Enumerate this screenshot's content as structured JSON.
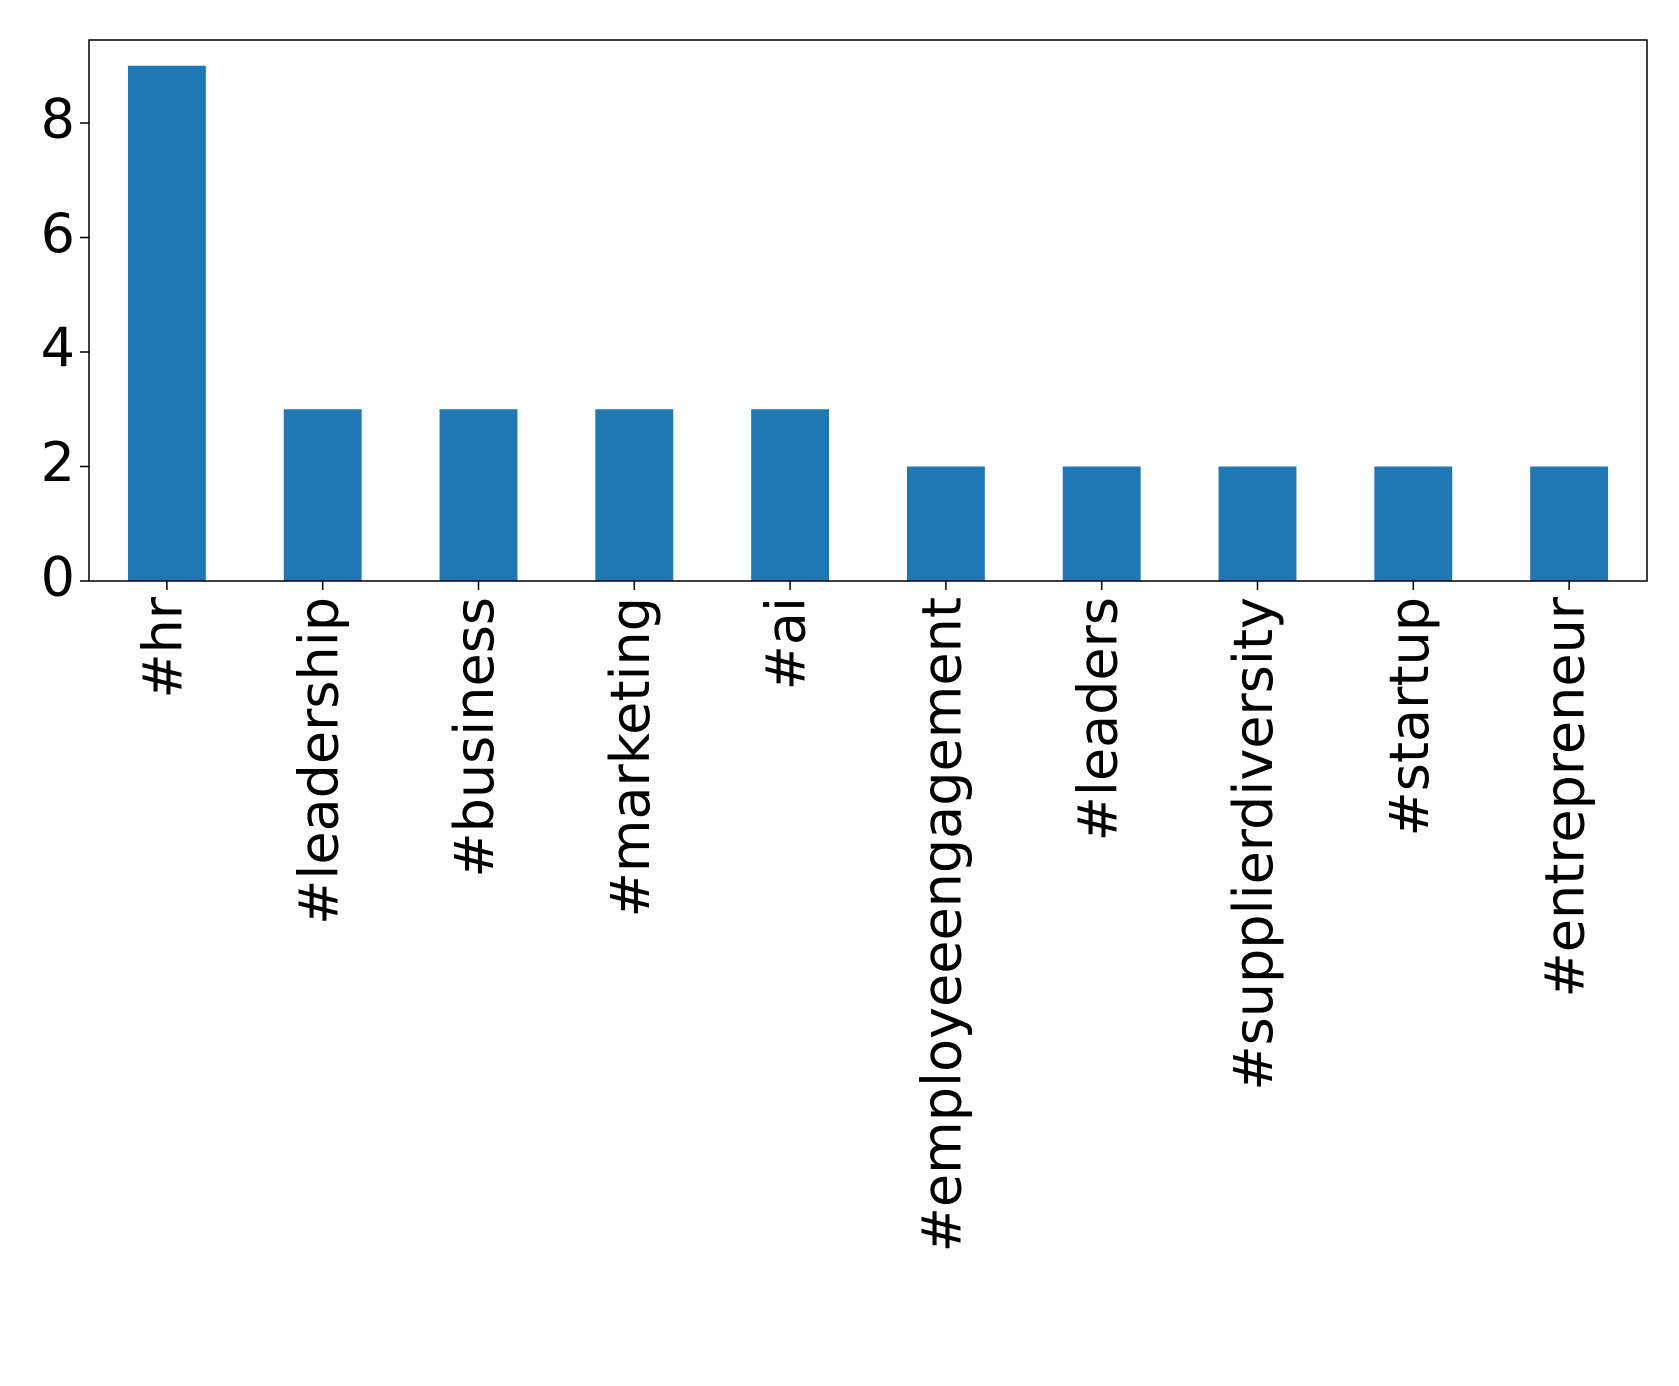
{
  "chart_data": {
    "type": "bar",
    "categories": [
      "#hr",
      "#leadership",
      "#business",
      "#marketing",
      "#ai",
      "#employeeengagement",
      "#leaders",
      "#supplierdiversity",
      "#startup",
      "#entrepreneur"
    ],
    "values": [
      9,
      3,
      3,
      3,
      3,
      2,
      2,
      2,
      2,
      2
    ],
    "color": "#1f77b4",
    "ylim": [
      0,
      9.45
    ],
    "yticks": [
      0,
      2,
      4,
      6,
      8
    ],
    "grid": false
  }
}
